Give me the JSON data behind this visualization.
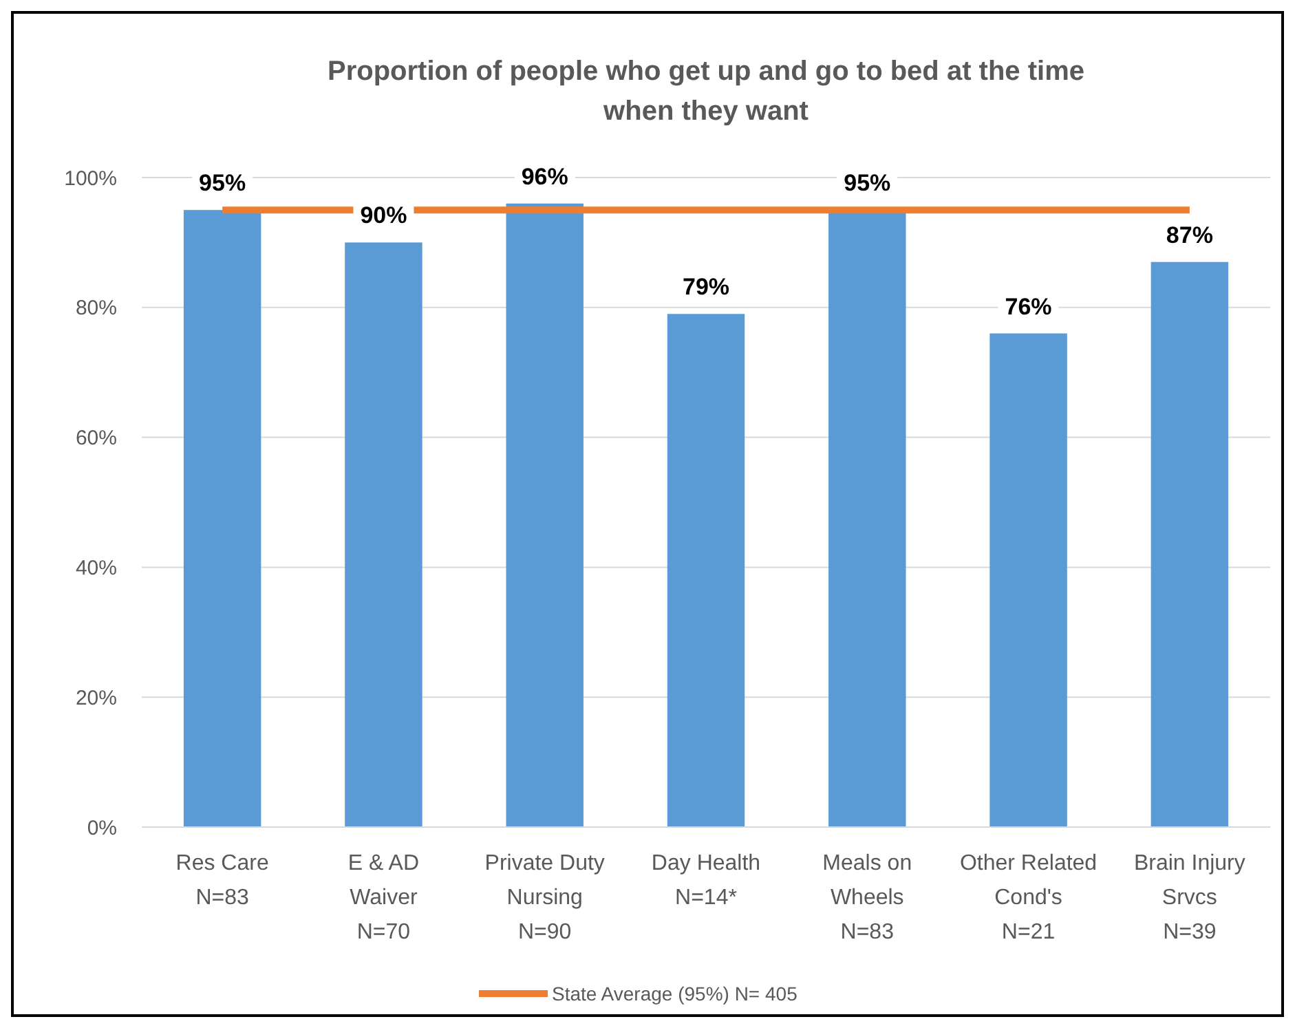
{
  "chart_data": {
    "type": "bar",
    "title": "Proportion of people who get up and go to bed at the time when they want",
    "categories": [
      "Res Care\nN=83",
      "E & AD\nWaiver\nN=70",
      "Private Duty\nNursing\nN=90",
      "Day Health\nN=14*",
      "Meals on\nWheels\nN=83",
      "Other Related\nCond's\nN=21",
      "Brain Injury\nSrvcs\nN=39"
    ],
    "values": [
      95,
      90,
      96,
      79,
      95,
      76,
      87
    ],
    "value_labels": [
      "95%",
      "90%",
      "96%",
      "79%",
      "95%",
      "76%",
      "87%"
    ],
    "color": "#5b9bd5",
    "ylim": [
      0,
      100
    ],
    "yticks": [
      {
        "value": 0,
        "label": "0%"
      },
      {
        "value": 20,
        "label": "20%"
      },
      {
        "value": 40,
        "label": "40%"
      },
      {
        "value": 60,
        "label": "60%"
      },
      {
        "value": 80,
        "label": "80%"
      },
      {
        "value": 100,
        "label": "100%"
      }
    ],
    "grid": "y",
    "ref_lines": [
      {
        "axis": "y",
        "value": 95,
        "label": "State Average (95%) N= 405",
        "color": "#ed7d31"
      }
    ],
    "legend": "bottom"
  }
}
